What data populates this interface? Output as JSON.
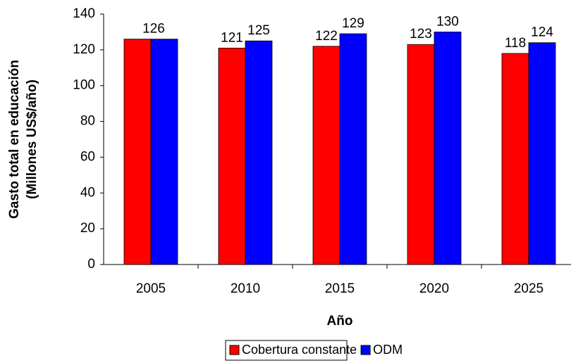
{
  "chart_data": {
    "type": "bar",
    "y_label": [
      "Gasto total en educación",
      "(Millones US$/año)"
    ],
    "x_label": "Año",
    "categories": [
      "2005",
      "2010",
      "2015",
      "2020",
      "2025"
    ],
    "series": [
      {
        "name": "Cobertura constante",
        "color": "#ff0000",
        "values": [
          126,
          121,
          122,
          123,
          118
        ],
        "value_labels": [
          null,
          "121",
          "122",
          "123",
          "118"
        ]
      },
      {
        "name": "ODM",
        "color": "#0000ff",
        "values": [
          126,
          125,
          129,
          130,
          124
        ],
        "value_labels": [
          "126",
          "125",
          "129",
          "130",
          "124"
        ]
      }
    ],
    "ylim": [
      0,
      140
    ],
    "yticks": [
      0,
      20,
      40,
      60,
      80,
      100,
      120,
      140
    ],
    "legend": "bottom"
  }
}
